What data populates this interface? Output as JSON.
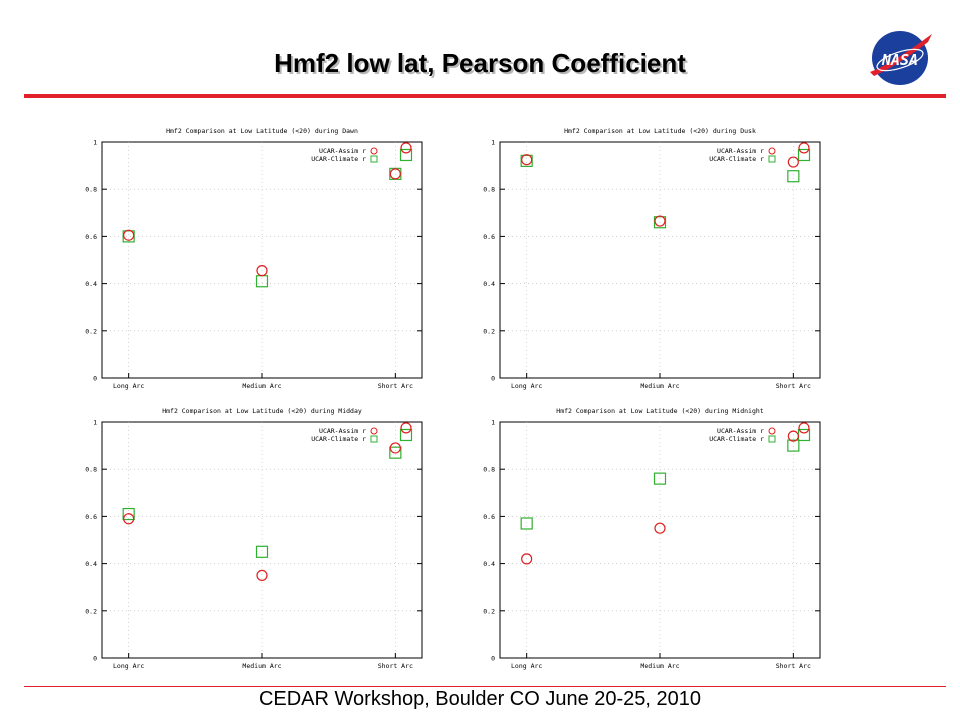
{
  "title": "Hmf2 low lat, Pearson Coefficient",
  "footer": "CEDAR Workshop, Boulder CO June 20-25, 2010",
  "logo_text": "NASA",
  "colors": {
    "accent_rule": "#e0202a",
    "circle_series": "#e02020",
    "square_series": "#30b030"
  },
  "chart_data": [
    {
      "type": "scatter",
      "title": "Hmf2 Comparison at Low Latitude (<20) during Dawn",
      "categories": [
        "Long Arc",
        "Medium Arc",
        "Short Arc"
      ],
      "ylim": [
        0,
        1
      ],
      "yticks": [
        "0",
        "0.2",
        "0.4",
        "0.6",
        "0.8",
        "1"
      ],
      "legend_position": "top-right",
      "series": [
        {
          "name": "UCAR-Assim r",
          "marker": "circle",
          "color": "#e02020",
          "points": [
            {
              "x": 1,
              "y": 0.605
            },
            {
              "x": 2,
              "y": 0.455
            },
            {
              "x": 3,
              "y": 0.865
            },
            {
              "x": 3.08,
              "y": 0.975
            }
          ]
        },
        {
          "name": "UCAR-Climate r",
          "marker": "square",
          "color": "#30b030",
          "points": [
            {
              "x": 1,
              "y": 0.6
            },
            {
              "x": 2,
              "y": 0.41
            },
            {
              "x": 3,
              "y": 0.865
            },
            {
              "x": 3.08,
              "y": 0.945
            }
          ]
        }
      ]
    },
    {
      "type": "scatter",
      "title": "Hmf2 Comparison at Low Latitude (<20) during Dusk",
      "categories": [
        "Long Arc",
        "Medium Arc",
        "Short Arc"
      ],
      "ylim": [
        0,
        1
      ],
      "yticks": [
        "0",
        "0.2",
        "0.4",
        "0.6",
        "0.8",
        "1"
      ],
      "legend_position": "top-right",
      "series": [
        {
          "name": "UCAR-Assim r",
          "marker": "circle",
          "color": "#e02020",
          "points": [
            {
              "x": 1,
              "y": 0.925
            },
            {
              "x": 2,
              "y": 0.665
            },
            {
              "x": 3,
              "y": 0.915
            },
            {
              "x": 3.08,
              "y": 0.975
            }
          ]
        },
        {
          "name": "UCAR-Climate r",
          "marker": "square",
          "color": "#30b030",
          "points": [
            {
              "x": 1,
              "y": 0.92
            },
            {
              "x": 2,
              "y": 0.66
            },
            {
              "x": 3,
              "y": 0.855
            },
            {
              "x": 3.08,
              "y": 0.945
            }
          ]
        }
      ]
    },
    {
      "type": "scatter",
      "title": "Hmf2 Comparison at Low Latitude (<20) during Midday",
      "categories": [
        "Long Arc",
        "Medium Arc",
        "Short Arc"
      ],
      "ylim": [
        0,
        1
      ],
      "yticks": [
        "0",
        "0.2",
        "0.4",
        "0.6",
        "0.8",
        "1"
      ],
      "legend_position": "top-right",
      "series": [
        {
          "name": "UCAR-Assim r",
          "marker": "circle",
          "color": "#e02020",
          "points": [
            {
              "x": 1,
              "y": 0.59
            },
            {
              "x": 2,
              "y": 0.35
            },
            {
              "x": 3,
              "y": 0.89
            },
            {
              "x": 3.08,
              "y": 0.975
            }
          ]
        },
        {
          "name": "UCAR-Climate r",
          "marker": "square",
          "color": "#30b030",
          "points": [
            {
              "x": 1,
              "y": 0.61
            },
            {
              "x": 2,
              "y": 0.45
            },
            {
              "x": 3,
              "y": 0.87
            },
            {
              "x": 3.08,
              "y": 0.945
            }
          ]
        }
      ]
    },
    {
      "type": "scatter",
      "title": "Hmf2 Comparison at Low Latitude (<20) during Midnight",
      "categories": [
        "Long Arc",
        "Medium Arc",
        "Short Arc"
      ],
      "ylim": [
        0,
        1
      ],
      "yticks": [
        "0",
        "0.2",
        "0.4",
        "0.6",
        "0.8",
        "1"
      ],
      "legend_position": "top-right",
      "series": [
        {
          "name": "UCAR-Assim r",
          "marker": "circle",
          "color": "#e02020",
          "points": [
            {
              "x": 1,
              "y": 0.42
            },
            {
              "x": 2,
              "y": 0.55
            },
            {
              "x": 3,
              "y": 0.94
            },
            {
              "x": 3.08,
              "y": 0.975
            }
          ]
        },
        {
          "name": "UCAR-Climate r",
          "marker": "square",
          "color": "#30b030",
          "points": [
            {
              "x": 1,
              "y": 0.57
            },
            {
              "x": 2,
              "y": 0.76
            },
            {
              "x": 3,
              "y": 0.9
            },
            {
              "x": 3.08,
              "y": 0.945
            }
          ]
        }
      ]
    }
  ]
}
